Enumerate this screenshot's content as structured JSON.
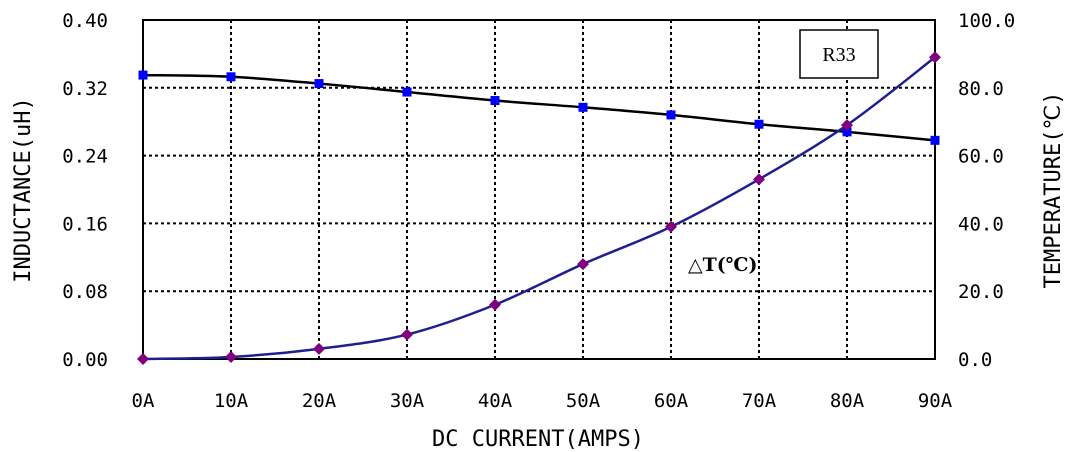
{
  "chart_data": {
    "type": "line",
    "label": "R33",
    "xlabel": "DC CURRENT(AMPS)",
    "ylabel_left": "INDUCTANCE(uH)",
    "ylabel_right": "TEMPERATURE(℃)",
    "x_tick_labels": [
      "0A",
      "10A",
      "20A",
      "30A",
      "40A",
      "50A",
      "60A",
      "70A",
      "80A",
      "90A"
    ],
    "x": [
      0,
      10,
      20,
      30,
      40,
      50,
      60,
      70,
      80,
      90
    ],
    "xlim": [
      0,
      90
    ],
    "ylim_left": [
      0,
      0.4
    ],
    "ylim_right": [
      0,
      100
    ],
    "y_left_tick_labels": [
      "0.00",
      "0.08",
      "0.16",
      "0.24",
      "0.32",
      "0.40"
    ],
    "y_left_ticks": [
      0,
      0.08,
      0.16,
      0.24,
      0.32,
      0.4
    ],
    "y_right_tick_labels": [
      "0.0",
      "20.0",
      "40.0",
      "60.0",
      "80.0",
      "100.0"
    ],
    "y_right_ticks": [
      0,
      20,
      40,
      60,
      80,
      100
    ],
    "grid": true,
    "grid_style": "dotted",
    "series": [
      {
        "axis": "left",
        "color": "#000000",
        "marker": "square",
        "marker_color": "#0000ff",
        "values": [
          0.335,
          0.333,
          0.325,
          0.315,
          0.305,
          0.297,
          0.288,
          0.277,
          0.268,
          0.258
        ]
      },
      {
        "name": "△T(℃)",
        "axis": "right",
        "color": "#1f1f8f",
        "marker": "diamond",
        "marker_color": "#800080",
        "values": [
          0,
          0.6,
          3.0,
          7.2,
          16.0,
          28.0,
          39.0,
          53.0,
          69.0,
          89.0
        ]
      }
    ]
  }
}
